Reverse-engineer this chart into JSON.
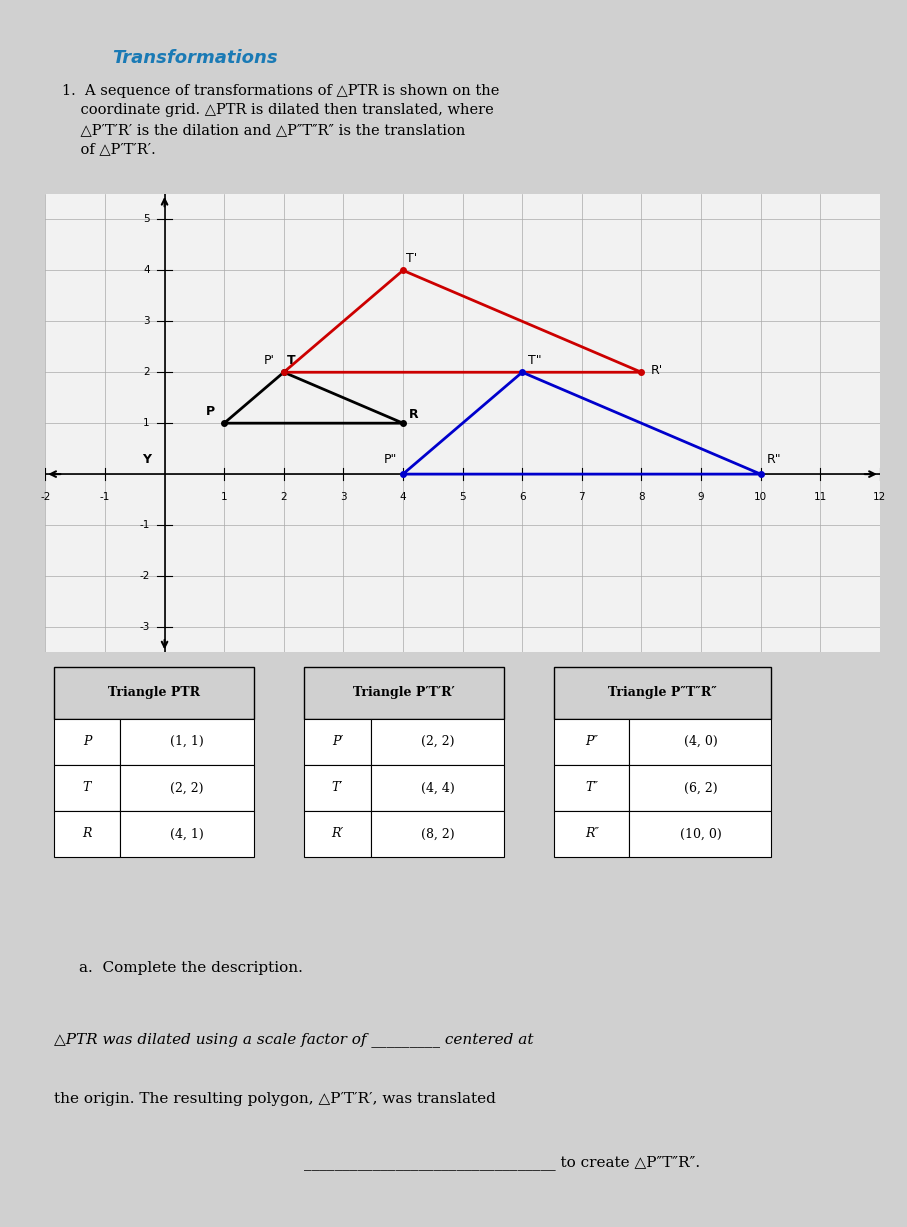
{
  "title": "Transformations",
  "problem_text": "1.  A sequence of transformations of △PTR is shown on the\n    coordinate grid. △PTR is dilated then translated, where\n    △P′T′R′ is the dilation and △P″T″R″ is the translation\n    of △P′T′R′.",
  "triangle_PTR": {
    "P": [
      1,
      1
    ],
    "T": [
      2,
      2
    ],
    "R": [
      4,
      1
    ]
  },
  "triangle_P1T1R1": {
    "P1": [
      2,
      2
    ],
    "T1": [
      4,
      4
    ],
    "R1": [
      8,
      2
    ]
  },
  "triangle_P2T2R2": {
    "P2": [
      4,
      0
    ],
    "T2": [
      6,
      2
    ],
    "R2": [
      10,
      0
    ]
  },
  "color_PTR": "#000000",
  "color_P1T1R1": "#cc0000",
  "color_P2T2R2": "#0000cc",
  "xlim": [
    -2,
    12
  ],
  "ylim": [
    -3.5,
    5.5
  ],
  "xticks": [
    -2,
    -1,
    0,
    1,
    2,
    3,
    4,
    5,
    6,
    7,
    8,
    9,
    10,
    11,
    12
  ],
  "yticks": [
    -3,
    -2,
    -1,
    0,
    1,
    2,
    3,
    4,
    5
  ],
  "xlabel": "",
  "ylabel": "Y",
  "table1_header": "Triangle PTR",
  "table1_data": [
    [
      "P",
      "(1, 1)"
    ],
    [
      "T",
      "(2, 2)"
    ],
    [
      "R",
      "(4, 1)"
    ]
  ],
  "table2_header": "Triangle P′T′R′",
  "table2_data": [
    [
      "P′",
      "(2, 2)"
    ],
    [
      "T′",
      "(4, 4)"
    ],
    [
      "R′",
      "(8, 2)"
    ]
  ],
  "table3_header": "Triangle P″T″R″",
  "table3_data": [
    [
      "P″",
      "(4, 0)"
    ],
    [
      "T″",
      "(6, 2)"
    ],
    [
      "R″",
      "(10, 0)"
    ]
  ],
  "part_a_label": "a.  Complete the description.",
  "part_a_text1": "△PTR was dilated using a scale factor of _________ centered at",
  "part_a_text2": "the origin. The resulting polygon, △P′T′R′, was translated",
  "part_a_text3": "_________________________________ to create △P″T″R″.",
  "background_color": "#e8e8e8",
  "page_color": "#f0f0f0"
}
